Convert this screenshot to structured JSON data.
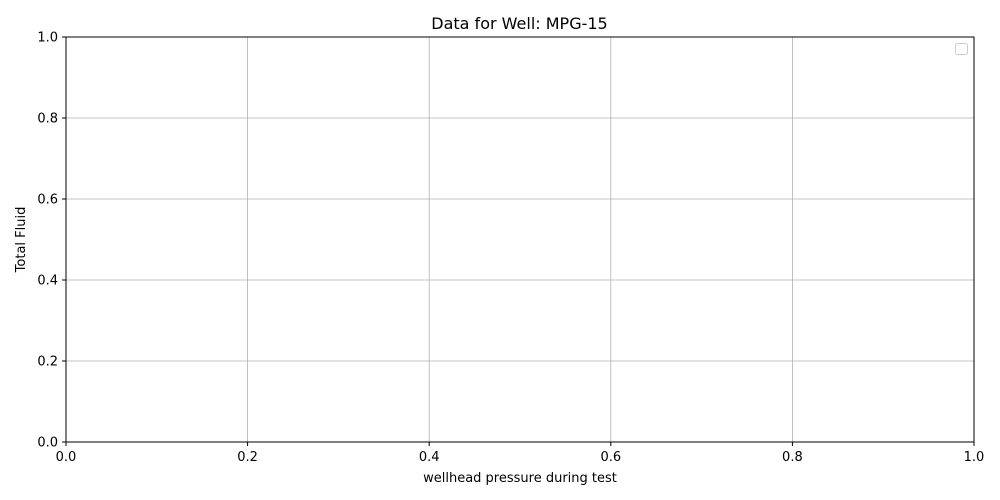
{
  "chart_data": {
    "type": "line",
    "title": "Data for Well: MPG-15",
    "xlabel": "wellhead pressure during test",
    "ylabel": "Total Fluid",
    "xlim": [
      0,
      1
    ],
    "ylim": [
      0,
      1
    ],
    "x_ticks": [
      "0.0",
      "0.2",
      "0.4",
      "0.6",
      "0.8",
      "1.0"
    ],
    "y_ticks": [
      "0.0",
      "0.2",
      "0.4",
      "0.6",
      "0.8",
      "1.0"
    ],
    "series": [],
    "grid": true,
    "legend": {
      "position": "top-right",
      "entries": []
    },
    "colors": {
      "grid": "#b0b0b0",
      "axes": "#000000",
      "background": "#ffffff"
    }
  }
}
